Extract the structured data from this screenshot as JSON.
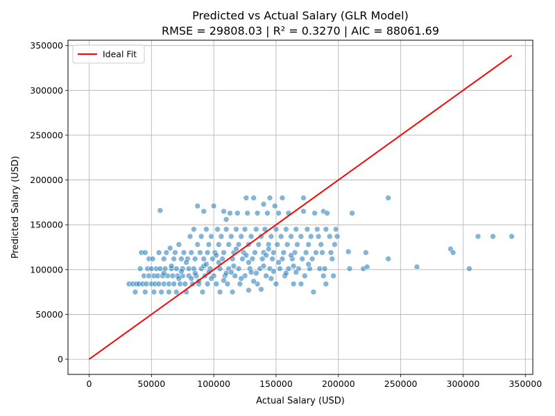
{
  "chart_data": {
    "type": "scatter",
    "title_line1": "Predicted vs Actual Salary (GLR Model)",
    "title_line2": "RMSE = 29808.03 | R² = 0.3270 | AIC = 88061.69",
    "xlabel": "Actual Salary (USD)",
    "ylabel": "Predicted Salary (USD)",
    "xlim": [
      -16950,
      355950
    ],
    "ylim": [
      -16950,
      355950
    ],
    "xticks": [
      0,
      50000,
      100000,
      150000,
      200000,
      250000,
      300000,
      350000
    ],
    "yticks": [
      0,
      50000,
      100000,
      150000,
      200000,
      250000,
      300000,
      350000
    ],
    "grid": true,
    "legend_position": "top-left",
    "ideal_fit": {
      "name": "Ideal Fit",
      "x": [
        0,
        339000
      ],
      "y": [
        0,
        339000
      ],
      "color": "#ff0000"
    },
    "point_color": "#1f77b4",
    "points": [
      [
        32000,
        84000
      ],
      [
        35000,
        84000
      ],
      [
        37000,
        75000
      ],
      [
        38000,
        84000
      ],
      [
        40000,
        84000
      ],
      [
        41000,
        101000
      ],
      [
        42000,
        119000
      ],
      [
        43000,
        84000
      ],
      [
        44000,
        93000
      ],
      [
        45000,
        119000
      ],
      [
        45000,
        75000
      ],
      [
        46000,
        84000
      ],
      [
        47000,
        101000
      ],
      [
        48000,
        93000
      ],
      [
        48000,
        112000
      ],
      [
        50000,
        84000
      ],
      [
        50000,
        101000
      ],
      [
        51000,
        112000
      ],
      [
        52000,
        75000
      ],
      [
        52000,
        93000
      ],
      [
        53000,
        84000
      ],
      [
        54000,
        101000
      ],
      [
        55000,
        93000
      ],
      [
        56000,
        119000
      ],
      [
        56000,
        84000
      ],
      [
        57000,
        166000
      ],
      [
        57000,
        101000
      ],
      [
        58000,
        75000
      ],
      [
        59000,
        93000
      ],
      [
        60000,
        84000
      ],
      [
        60000,
        112000
      ],
      [
        61000,
        101000
      ],
      [
        62000,
        119000
      ],
      [
        63000,
        93000
      ],
      [
        64000,
        84000
      ],
      [
        64000,
        75000
      ],
      [
        65000,
        124000
      ],
      [
        66000,
        101000
      ],
      [
        67000,
        93000
      ],
      [
        68000,
        112000
      ],
      [
        68000,
        84000
      ],
      [
        69000,
        119000
      ],
      [
        70000,
        101000
      ],
      [
        70000,
        75000
      ],
      [
        71000,
        93000
      ],
      [
        72000,
        128000
      ],
      [
        73000,
        84000
      ],
      [
        74000,
        112000
      ],
      [
        75000,
        101000
      ],
      [
        75000,
        93000
      ],
      [
        76000,
        119000
      ],
      [
        77000,
        84000
      ],
      [
        78000,
        75000
      ],
      [
        79000,
        112000
      ],
      [
        80000,
        101000
      ],
      [
        80000,
        93000
      ],
      [
        81000,
        137000
      ],
      [
        82000,
        119000
      ],
      [
        83000,
        84000
      ],
      [
        84000,
        145000
      ],
      [
        84000,
        101000
      ],
      [
        85000,
        112000
      ],
      [
        86000,
        93000
      ],
      [
        87000,
        128000
      ],
      [
        87000,
        171000
      ],
      [
        88000,
        84000
      ],
      [
        89000,
        119000
      ],
      [
        90000,
        101000
      ],
      [
        90000,
        137000
      ],
      [
        91000,
        75000
      ],
      [
        92000,
        112000
      ],
      [
        92000,
        165000
      ],
      [
        93000,
        93000
      ],
      [
        94000,
        145000
      ],
      [
        95000,
        119000
      ],
      [
        95000,
        84000
      ],
      [
        96000,
        128000
      ],
      [
        97000,
        101000
      ],
      [
        98000,
        137000
      ],
      [
        99000,
        112000
      ],
      [
        100000,
        93000
      ],
      [
        100000,
        171000
      ],
      [
        101000,
        119000
      ],
      [
        102000,
        84000
      ],
      [
        103000,
        145000
      ],
      [
        104000,
        128000
      ],
      [
        105000,
        101000
      ],
      [
        105000,
        75000
      ],
      [
        106000,
        137000
      ],
      [
        107000,
        112000
      ],
      [
        108000,
        119000
      ],
      [
        108000,
        165000
      ],
      [
        109000,
        93000
      ],
      [
        110000,
        145000
      ],
      [
        110000,
        156000
      ],
      [
        111000,
        84000
      ],
      [
        112000,
        128000
      ],
      [
        112000,
        101000
      ],
      [
        113000,
        163000
      ],
      [
        114000,
        137000
      ],
      [
        115000,
        112000
      ],
      [
        115000,
        75000
      ],
      [
        116000,
        119000
      ],
      [
        117000,
        93000
      ],
      [
        118000,
        145000
      ],
      [
        119000,
        163000
      ],
      [
        120000,
        128000
      ],
      [
        120000,
        101000
      ],
      [
        121000,
        84000
      ],
      [
        122000,
        137000
      ],
      [
        123000,
        112000
      ],
      [
        124000,
        119000
      ],
      [
        125000,
        145000
      ],
      [
        125000,
        93000
      ],
      [
        126000,
        180000
      ],
      [
        127000,
        163000
      ],
      [
        128000,
        128000
      ],
      [
        128000,
        77000
      ],
      [
        129000,
        101000
      ],
      [
        130000,
        137000
      ],
      [
        131000,
        112000
      ],
      [
        132000,
        180000
      ],
      [
        133000,
        119000
      ],
      [
        134000,
        145000
      ],
      [
        135000,
        84000
      ],
      [
        135000,
        163000
      ],
      [
        136000,
        128000
      ],
      [
        137000,
        101000
      ],
      [
        138000,
        137000
      ],
      [
        138000,
        78000
      ],
      [
        139000,
        112000
      ],
      [
        140000,
        119000
      ],
      [
        140000,
        173000
      ],
      [
        141000,
        145000
      ],
      [
        142000,
        93000
      ],
      [
        143000,
        163000
      ],
      [
        144000,
        128000
      ],
      [
        145000,
        101000
      ],
      [
        145000,
        180000
      ],
      [
        146000,
        137000
      ],
      [
        147000,
        112000
      ],
      [
        148000,
        119000
      ],
      [
        149000,
        171000
      ],
      [
        150000,
        145000
      ],
      [
        150000,
        84000
      ],
      [
        151000,
        128000
      ],
      [
        152000,
        163000
      ],
      [
        153000,
        101000
      ],
      [
        154000,
        137000
      ],
      [
        155000,
        112000
      ],
      [
        155000,
        180000
      ],
      [
        156000,
        119000
      ],
      [
        157000,
        93000
      ],
      [
        158000,
        145000
      ],
      [
        159000,
        128000
      ],
      [
        160000,
        101000
      ],
      [
        160000,
        163000
      ],
      [
        162000,
        137000
      ],
      [
        163000,
        112000
      ],
      [
        164000,
        84000
      ],
      [
        165000,
        119000
      ],
      [
        166000,
        145000
      ],
      [
        167000,
        128000
      ],
      [
        168000,
        101000
      ],
      [
        170000,
        137000
      ],
      [
        170000,
        84000
      ],
      [
        171000,
        112000
      ],
      [
        172000,
        165000
      ],
      [
        172000,
        180000
      ],
      [
        173000,
        93000
      ],
      [
        174000,
        119000
      ],
      [
        175000,
        145000
      ],
      [
        176000,
        128000
      ],
      [
        177000,
        101000
      ],
      [
        178000,
        137000
      ],
      [
        179000,
        112000
      ],
      [
        180000,
        75000
      ],
      [
        181000,
        163000
      ],
      [
        182000,
        119000
      ],
      [
        183000,
        145000
      ],
      [
        184000,
        137000
      ],
      [
        185000,
        101000
      ],
      [
        186000,
        128000
      ],
      [
        187000,
        119000
      ],
      [
        188000,
        93000
      ],
      [
        188000,
        165000
      ],
      [
        189000,
        101000
      ],
      [
        190000,
        84000
      ],
      [
        190000,
        145000
      ],
      [
        191000,
        163000
      ],
      [
        193000,
        137000
      ],
      [
        194000,
        119000
      ],
      [
        195000,
        112000
      ],
      [
        196000,
        93000
      ],
      [
        197000,
        128000
      ],
      [
        198000,
        145000
      ],
      [
        199000,
        137000
      ],
      [
        208000,
        120000
      ],
      [
        209000,
        101000
      ],
      [
        211000,
        163000
      ],
      [
        220000,
        101000
      ],
      [
        222000,
        119000
      ],
      [
        223000,
        103000
      ],
      [
        240000,
        180000
      ],
      [
        240000,
        112000
      ],
      [
        263000,
        103000
      ],
      [
        290000,
        123000
      ],
      [
        292000,
        119000
      ],
      [
        305000,
        101000
      ],
      [
        312000,
        137000
      ],
      [
        324000,
        137000
      ],
      [
        339000,
        137000
      ],
      [
        60000,
        96000
      ],
      [
        66000,
        104000
      ],
      [
        72000,
        90000
      ],
      [
        78000,
        108000
      ],
      [
        85000,
        96000
      ],
      [
        92000,
        104000
      ],
      [
        98000,
        90000
      ],
      [
        104000,
        108000
      ],
      [
        110000,
        96000
      ],
      [
        116000,
        104000
      ],
      [
        122000,
        90000
      ],
      [
        128000,
        108000
      ],
      [
        134000,
        96000
      ],
      [
        140000,
        104000
      ],
      [
        146000,
        90000
      ],
      [
        152000,
        108000
      ],
      [
        158000,
        96000
      ],
      [
        164000,
        104000
      ],
      [
        74000,
        98000
      ],
      [
        88000,
        87000
      ],
      [
        102000,
        116000
      ],
      [
        118000,
        123000
      ],
      [
        126000,
        116000
      ],
      [
        132000,
        87000
      ],
      [
        144000,
        123000
      ],
      [
        162000,
        116000
      ],
      [
        94000,
        106000
      ],
      [
        108000,
        88000
      ],
      [
        82000,
        90000
      ],
      [
        96000,
        97000
      ],
      [
        114000,
        97000
      ],
      [
        130000,
        97000
      ],
      [
        142000,
        116000
      ],
      [
        148000,
        98000
      ],
      [
        166000,
        97000
      ],
      [
        176000,
        106000
      ]
    ]
  }
}
